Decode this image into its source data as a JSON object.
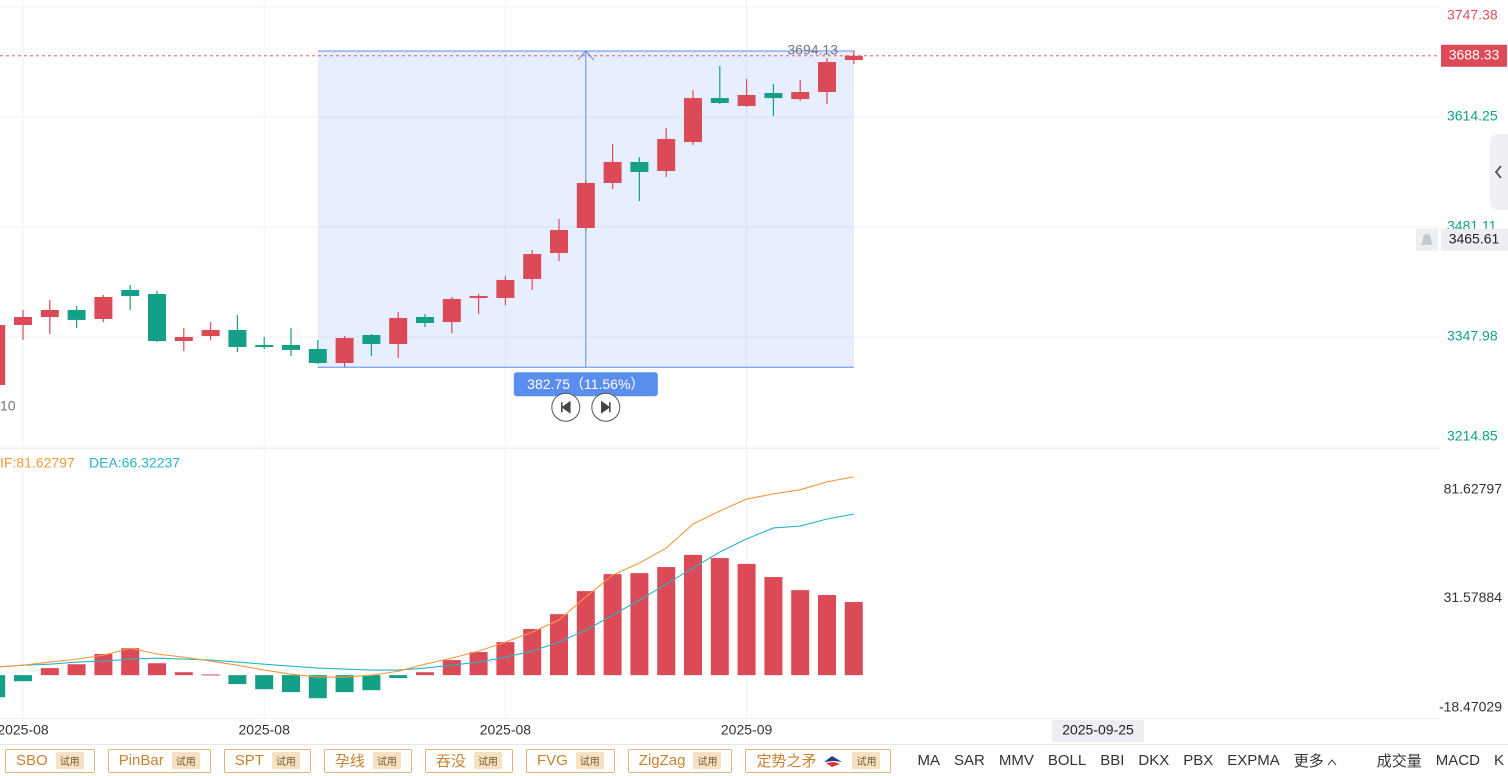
{
  "chart_data": [
    {
      "type": "candlestick",
      "categories": [
        null,
        "2025-08",
        null,
        null,
        null,
        null,
        null,
        null,
        null,
        null,
        "2025-08",
        null,
        null,
        null,
        null,
        null,
        null,
        null,
        null,
        "2025-08",
        null,
        null,
        null,
        null,
        null,
        null,
        null,
        null,
        "2025-09",
        null,
        null,
        null,
        null
      ],
      "open": [
        3289.9,
        3362.5,
        3372.2,
        3380.7,
        3369.8,
        3404.9,
        3400.0,
        3343.1,
        3349.2,
        3356.5,
        3338.3,
        3338.3,
        3333.5,
        3316.5,
        3350.4,
        3339.5,
        3372.2,
        3366.1,
        3395.2,
        3395.2,
        3418.2,
        3449.7,
        3479.9,
        3534.4,
        3559.8,
        3548.9,
        3584.0,
        3637.2,
        3627.6,
        3643.3,
        3636.0,
        3644.5,
        3683.2
      ],
      "high": [
        3362.5,
        3380.7,
        3392.8,
        3385.5,
        3398.8,
        3410.9,
        3403.7,
        3358.9,
        3366.1,
        3374.6,
        3348.0,
        3358.9,
        3344.4,
        3349.2,
        3351.6,
        3378.2,
        3375.8,
        3396.4,
        3400.0,
        3421.8,
        3453.3,
        3490.8,
        3538.0,
        3581.6,
        3565.8,
        3600.9,
        3646.9,
        3676.0,
        3660.2,
        3654.2,
        3659.0,
        3685.7,
        3694.13
      ],
      "low": [
        3289.9,
        3344.4,
        3351.6,
        3358.9,
        3366.1,
        3380.7,
        3341.9,
        3331.0,
        3344.4,
        3329.8,
        3333.5,
        3325.0,
        3315.3,
        3311.7,
        3325.0,
        3322.6,
        3360.1,
        3352.8,
        3375.8,
        3386.7,
        3404.9,
        3440.0,
        3477.5,
        3527.1,
        3512.6,
        3541.6,
        3580.4,
        3630.0,
        3626.4,
        3615.5,
        3633.6,
        3630.0,
        3678.4
      ],
      "close": [
        3362.5,
        3372.2,
        3380.7,
        3368.6,
        3396.4,
        3397.6,
        3343.1,
        3348.0,
        3356.5,
        3335.9,
        3335.9,
        3332.3,
        3316.5,
        3346.8,
        3339.5,
        3371.0,
        3364.9,
        3394.0,
        3397.6,
        3417.0,
        3448.4,
        3477.5,
        3534.4,
        3559.8,
        3547.7,
        3587.6,
        3637.2,
        3631.2,
        3640.9,
        3637.2,
        3644.5,
        3680.8,
        3688.33
      ],
      "up_color": "#dc4a58",
      "down_color": "#14a086",
      "ylim": [
        3214.85,
        3747.38
      ],
      "yticks": [
        3214.85,
        3347.98,
        3481.11,
        3614.25,
        3747.38
      ],
      "grid": true,
      "last_price": 3688.33,
      "high_marker": 3694.13,
      "crosshair_price": 3465.61,
      "crosshair_label": "2025-09-25",
      "low_label": "10",
      "measure": {
        "label": "382.75（11.56%）",
        "low": 3311.38,
        "high": 3694.13,
        "start": 12,
        "end": 32,
        "color": "#5b8def"
      }
    },
    {
      "type": "macd",
      "dif": {
        "label": "IF:81.62797",
        "color": "#f39a3c",
        "values": [
          3.3,
          4.1,
          5.4,
          6.6,
          8.2,
          11.1,
          8.7,
          7.4,
          5.8,
          4.1,
          2.1,
          0.4,
          -0.8,
          -0.8,
          0,
          1.6,
          4.5,
          7.0,
          9.9,
          13.6,
          17.7,
          22.7,
          32.2,
          41.2,
          46.2,
          52.3,
          62.2,
          67.6,
          72.5,
          74.6,
          76.3,
          79.6,
          81.62797
        ]
      },
      "dea": {
        "label": "DEA:66.32237",
        "color": "#27b5c9",
        "values": [
          3.3,
          4.1,
          4.5,
          5.4,
          5.8,
          6.6,
          7.0,
          6.6,
          6.2,
          5.4,
          4.5,
          3.7,
          2.9,
          2.5,
          2.1,
          2.1,
          2.9,
          4.1,
          5.4,
          7.4,
          9.9,
          13.6,
          18.5,
          24.7,
          30.9,
          37.5,
          44.1,
          50.7,
          56.1,
          60.6,
          61.4,
          64.3,
          66.32237
        ]
      },
      "histogram": {
        "up_color": "#dc4a58",
        "down_color": "#14a086",
        "values": [
          -9.1,
          -2.5,
          2.9,
          4.5,
          8.7,
          11.1,
          4.9,
          1.2,
          0.3,
          -3.7,
          -5.8,
          -7.0,
          -9.5,
          -7.0,
          -6.2,
          -1.2,
          1.2,
          6.2,
          9.5,
          13.6,
          19.0,
          25.1,
          34.6,
          41.6,
          42.0,
          44.5,
          49.5,
          48.2,
          45.8,
          40.4,
          35.0,
          33.0,
          30.1
        ]
      },
      "ylim": [
        -18.47029,
        92.7
      ],
      "yticks": [
        -18.47029,
        31.57884,
        81.62797
      ]
    }
  ],
  "toolbar": {
    "patterns": [
      {
        "name": "SBO",
        "badge": "试用"
      },
      {
        "name": "PinBar",
        "badge": "试用"
      },
      {
        "name": "SPT",
        "badge": "试用"
      },
      {
        "name": "孕线",
        "badge": "试用"
      },
      {
        "name": "吞没",
        "badge": "试用"
      },
      {
        "name": "FVG",
        "badge": "试用"
      },
      {
        "name": "ZigZag",
        "badge": "试用"
      },
      {
        "name": "定势之矛",
        "badge": "试用"
      }
    ],
    "indicators": [
      "MA",
      "SAR",
      "MMV",
      "BOLL",
      "BBI",
      "DKX",
      "PBX",
      "EXPMA",
      "更多"
    ],
    "panels": [
      "成交量",
      "MACD",
      "K"
    ]
  }
}
